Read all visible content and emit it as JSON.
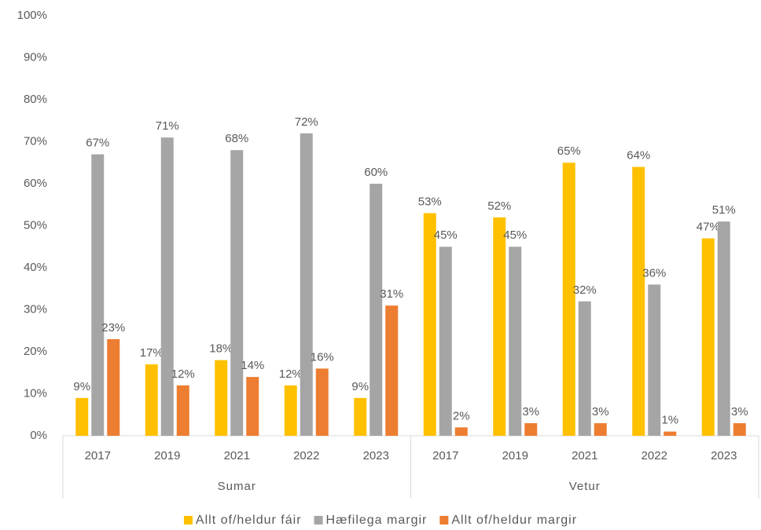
{
  "chart_data": {
    "type": "bar",
    "category_groups": [
      {
        "name": "Sumar",
        "categories": [
          "2017",
          "2019",
          "2021",
          "2022",
          "2023"
        ]
      },
      {
        "name": "Vetur",
        "categories": [
          "2017",
          "2019",
          "2021",
          "2022",
          "2023"
        ]
      }
    ],
    "series": [
      {
        "name": "Allt of/heldur fáir",
        "color": "#ffc000",
        "values": [
          9,
          17,
          18,
          12,
          9,
          53,
          52,
          65,
          64,
          47
        ],
        "value_labels": [
          "9%",
          "17%",
          "18%",
          "12%",
          "9%",
          "53%",
          "52%",
          "65%",
          "64%",
          "47%"
        ]
      },
      {
        "name": "Hæfilega margir",
        "color": "#a5a5a5",
        "values": [
          67,
          71,
          68,
          72,
          60,
          45,
          45,
          32,
          36,
          51
        ],
        "value_labels": [
          "67%",
          "71%",
          "68%",
          "72%",
          "60%",
          "45%",
          "45%",
          "32%",
          "36%",
          "51%"
        ]
      },
      {
        "name": "Allt of/heldur margir",
        "color": "#ed7d31",
        "values": [
          23,
          12,
          14,
          16,
          31,
          2,
          3,
          3,
          1,
          3
        ],
        "value_labels": [
          "23%",
          "12%",
          "14%",
          "16%",
          "31%",
          "2%",
          "3%",
          "3%",
          "1%",
          "3%"
        ]
      }
    ],
    "ylim": [
      0,
      100
    ],
    "yticks": [
      {
        "value": 0,
        "label": "0%"
      },
      {
        "value": 10,
        "label": "10%"
      },
      {
        "value": 20,
        "label": "20%"
      },
      {
        "value": 30,
        "label": "30%"
      },
      {
        "value": 40,
        "label": "40%"
      },
      {
        "value": 50,
        "label": "50%"
      },
      {
        "value": 60,
        "label": "60%"
      },
      {
        "value": 70,
        "label": "70%"
      },
      {
        "value": 80,
        "label": "80%"
      },
      {
        "value": 90,
        "label": "90%"
      },
      {
        "value": 100,
        "label": "100%"
      }
    ],
    "grid": false,
    "legend": "bottom"
  }
}
